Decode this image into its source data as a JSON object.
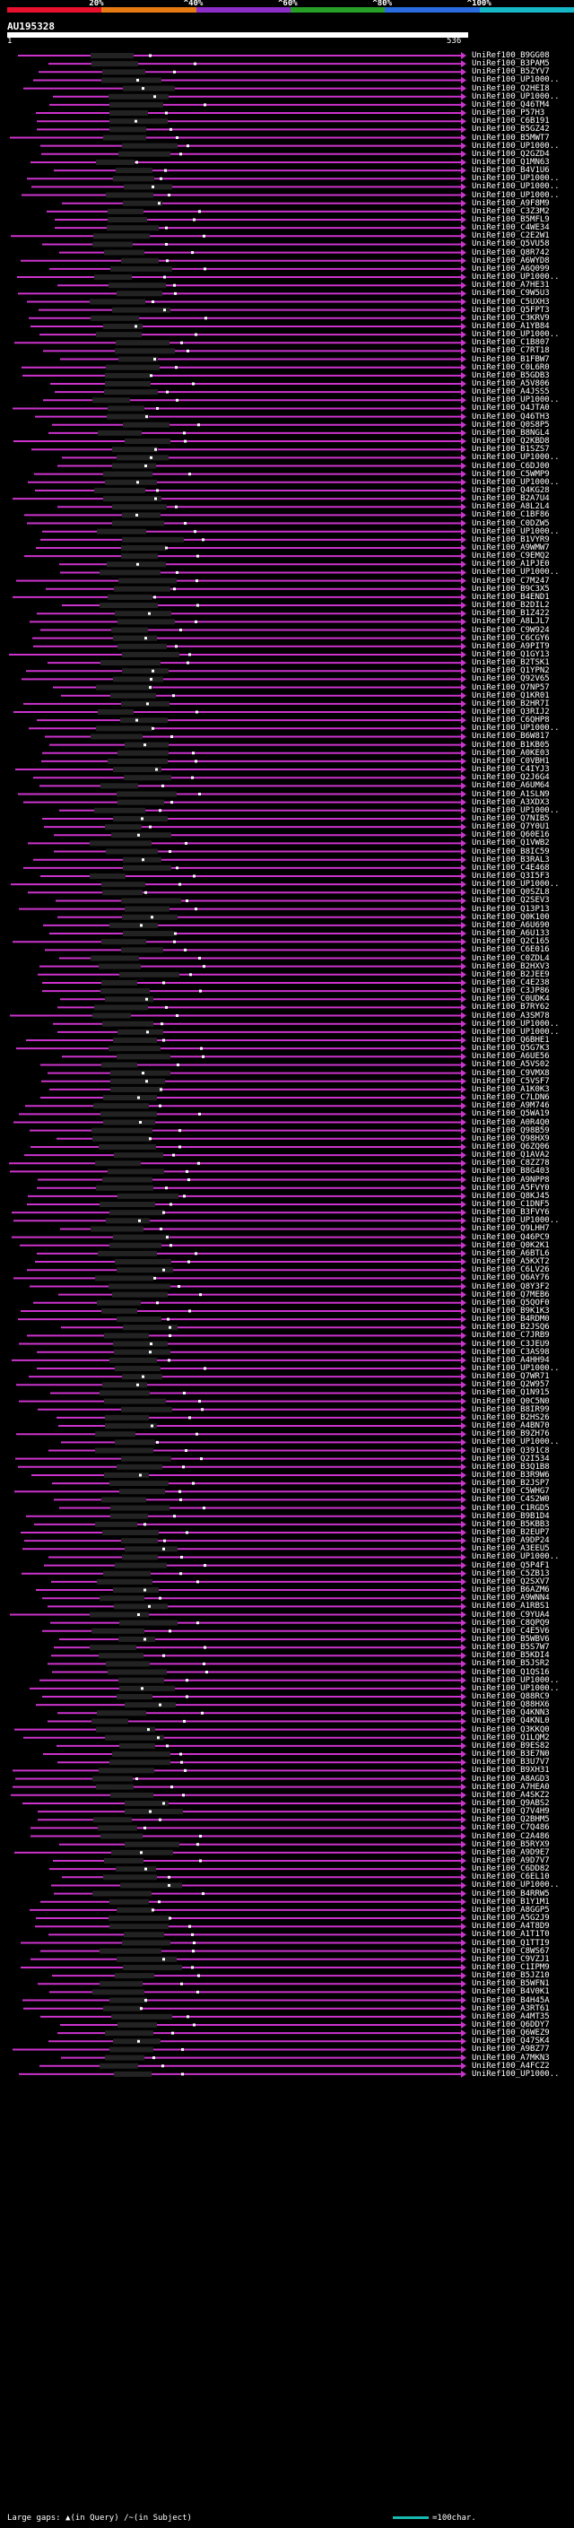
{
  "scale": {
    "labels": [
      "20%",
      "^40%",
      "^60%",
      "^80%",
      "^100%"
    ],
    "colors": [
      "#e8102c",
      "#e87a14",
      "#8e2ec8",
      "#28a028",
      "#2a6ce0",
      "#16b8c8"
    ]
  },
  "query": {
    "name": "AU195328",
    "start": "1",
    "end": "536"
  },
  "hit_color": "#cc33cc",
  "legend": {
    "large_gaps": "Large gaps:",
    "in_query": "(in Query)",
    "in_subject": "(in Subject)",
    "scale_note": "=100char."
  },
  "hits": [
    "UniRef100_B9GG08",
    "UniRef100_B3PAM5",
    "UniRef100_B5ZYV7",
    "UniRef100_UP1000..",
    "UniRef100_Q2HEI8",
    "UniRef100_UP1000..",
    "UniRef100_Q46TM4",
    "UniRef100_P57H3",
    "UniRef100_C6B191",
    "UniRef100_B5GZ42",
    "UniRef100_B5MWT7",
    "UniRef100_UP1000..",
    "UniRef100_Q2GZD4",
    "UniRef100_Q1MN63",
    "UniRef100_B4V1U6",
    "UniRef100_UP1000..",
    "UniRef100_UP1000..",
    "UniRef100_UP1000..",
    "UniRef100_A9F8M9",
    "UniRef100_C3Z3M2",
    "UniRef100_B5MFL9",
    "UniRef100_C4WE34",
    "UniRef100_C2E2W1",
    "UniRef100_Q5VU58",
    "UniRef100_Q8R742",
    "UniRef100_A6WYD8",
    "UniRef100_A6Q099",
    "UniRef100_UP1000..",
    "UniRef100_A7HE31",
    "UniRef100_C9W5U3",
    "UniRef100_C5UXH3",
    "UniRef100_Q5FPT3",
    "UniRef100_C3KRV9",
    "UniRef100_A1YB84",
    "UniRef100_UP1000..",
    "UniRef100_C1B807",
    "UniRef100_C7RT18",
    "UniRef100_B1FBW7",
    "UniRef100_C0L6R0",
    "UniRef100_B5GDB3",
    "UniRef100_A5V806",
    "UniRef100_A4JSS5",
    "UniRef100_UP1000..",
    "UniRef100_Q4JTA0",
    "UniRef100_Q46TH3",
    "UniRef100_Q0S8P5",
    "UniRef100_B8NGL4",
    "UniRef100_Q2KBD8",
    "UniRef100_B1SZS7",
    "UniRef100_UP1000..",
    "UniRef100_C6DJ00",
    "UniRef100_C5WMP9",
    "UniRef100_UP1000..",
    "UniRef100_Q4KG28",
    "UniRef100_B2A7U4",
    "UniRef100_A8L2L4",
    "UniRef100_C1BF86",
    "UniRef100_C0DZW5",
    "UniRef100_UP1000..",
    "UniRef100_B1VYR9",
    "UniRef100_A9WMW7",
    "UniRef100_C9EMQ2",
    "UniRef100_A1PJE0",
    "UniRef100_UP1000..",
    "UniRef100_C7M247",
    "UniRef100_B9C3X5",
    "UniRef100_B4END1",
    "UniRef100_B2DIL2",
    "UniRef100_B1Z422",
    "UniRef100_A8LJL7",
    "UniRef100_C9W924",
    "UniRef100_C6CGY6",
    "UniRef100_A9PIT9",
    "UniRef100_Q1GY13",
    "UniRef100_B2TSK1",
    "UniRef100_Q1YPN2",
    "UniRef100_Q92V65",
    "UniRef100_Q7NP57",
    "UniRef100_Q1KR01",
    "UniRef100_B2HR7I",
    "UniRef100_Q3RIJ2",
    "UniRef100_C6QHP8",
    "UniRef100_UP1000..",
    "UniRef100_B6W817",
    "UniRef100_B1KB05",
    "UniRef100_A0KE03",
    "UniRef100_C0VBH1",
    "UniRef100_C4IYJ3",
    "UniRef100_Q2J6G4",
    "UniRef100_A6UM64",
    "UniRef100_A1SLN9",
    "UniRef100_A3XDX3",
    "UniRef100_UP1000..",
    "UniRef100_Q7NIB5",
    "UniRef100_Q7Y0U1",
    "UniRef100_Q60E16",
    "UniRef100_Q1VWB2",
    "UniRef100_B8IC59",
    "UniRef100_B3RAL3",
    "UniRef100_C4E468",
    "UniRef100_Q3I5F3",
    "UniRef100_UP1000..",
    "UniRef100_Q0SZL8",
    "UniRef100_Q2SEV3",
    "UniRef100_Q13P13",
    "UniRef100_Q0K100",
    "UniRef100_A6U690",
    "UniRef100_A6U133",
    "UniRef100_Q2C165",
    "UniRef100_C6E016",
    "UniRef100_C0ZDL4",
    "UniRef100_B2HXV3",
    "UniRef100_B2JEE9",
    "UniRef100_C4E238",
    "UniRef100_C3JP86",
    "UniRef100_C0UDK4",
    "UniRef100_B7RY62",
    "UniRef100_A3SM78",
    "UniRef100_UP1000..",
    "UniRef100_UP1000..",
    "UniRef100_Q6BHE1",
    "UniRef100_Q5G7K3",
    "UniRef100_A6UE56",
    "UniRef100_A5VS02",
    "UniRef100_C9VMX8",
    "UniRef100_C5VSF7",
    "UniRef100_A1K0K3",
    "UniRef100_C7LDN6",
    "UniRef100_A9M746",
    "UniRef100_Q5WA19",
    "UniRef100_A0R4Q0",
    "UniRef100_Q98B59",
    "UniRef100_Q98HX9",
    "UniRef100_Q6ZQ06",
    "UniRef100_Q1AVA2",
    "UniRef100_C8ZZ78",
    "UniRef100_B8G403",
    "UniRef100_A9NPP8",
    "UniRef100_A5FVY0",
    "UniRef100_Q8KJ45",
    "UniRef100_C1DNF5",
    "UniRef100_B3FVY6",
    "UniRef100_UP1000..",
    "UniRef100_Q9LHH7",
    "UniRef100_Q46PC9",
    "UniRef100_Q0K2K1",
    "UniRef100_A6BTL6",
    "UniRef100_A5KXT2",
    "UniRef100_C6LV26",
    "UniRef100_Q6AY76",
    "UniRef100_Q8Y3F2",
    "UniRef100_Q7MEB6",
    "UniRef100_Q5QOF0",
    "UniRef100_B9K1K3",
    "UniRef100_B4RDM0",
    "UniRef100_B2JSQ6",
    "UniRef100_C7JRB9",
    "UniRef100_C3JEU9",
    "UniRef100_C3AS98",
    "UniRef100_A4HH94",
    "UniRef100_UP1000..",
    "UniRef100_Q7WR71",
    "UniRef100_Q2W957",
    "UniRef100_Q1N915",
    "UniRef100_Q0C5N0",
    "UniRef100_B8IR99",
    "UniRef100_B2HS26",
    "UniRef100_A4BN70",
    "UniRef100_B9ZH76",
    "UniRef100_UP1000..",
    "UniRef100_Q391C8",
    "UniRef100_Q2I534",
    "UniRef100_B3Q1B8",
    "UniRef100_B3R9W6",
    "UniRef100_B2JSP7",
    "UniRef100_C5WHG7",
    "UniRef100_C4S2W0",
    "UniRef100_C1RGD5",
    "UniRef100_B9B1D4",
    "UniRef100_B5KBB3",
    "UniRef100_B2EUP7",
    "UniRef100_A9DP24",
    "UniRef100_A3EEU5",
    "UniRef100_UP1000..",
    "UniRef100_Q5P4F1",
    "UniRef100_C5ZB13",
    "UniRef100_Q2SXV7",
    "UniRef100_B6AZM6",
    "UniRef100_A9WNN4",
    "UniRef100_A1RBS1",
    "UniRef100_C9YUA4",
    "UniRef100_C8QPQ9",
    "UniRef100_C4E5V6",
    "UniRef100_B5WBV6",
    "UniRef100_B5S7W7",
    "UniRef100_B5KDI4",
    "UniRef100_B5JSR2",
    "UniRef100_Q1QS16",
    "UniRef100_UP1000..",
    "UniRef100_UP1000..",
    "UniRef100_Q88RC9",
    "UniRef100_Q88HX6",
    "UniRef100_Q4KNN3",
    "UniRef100_Q4KNL0",
    "UniRef100_Q3KKQ0",
    "UniRef100_Q1LQM2",
    "UniRef100_B9ES82",
    "UniRef100_B3E7N0",
    "UniRef100_B3U7V7",
    "UniRef100_B9XH31",
    "UniRef100_A8AGD3",
    "UniRef100_A7HEA0",
    "UniRef100_A4SKZ2",
    "UniRef100_Q9ABS2",
    "UniRef100_Q7V4H9",
    "UniRef100_Q2BHM5",
    "UniRef100_C7Q486",
    "UniRef100_C2A486",
    "UniRef100_B5RYX9",
    "UniRef100_A9D9E7",
    "UniRef100_A9D7V7",
    "UniRef100_C6DD82",
    "UniRef100_C6EL10",
    "UniRef100_UP1000..",
    "UniRef100_B4RRW5",
    "UniRef100_B1Y1M1",
    "UniRef100_A8GGP5",
    "UniRef100_A5G2J9",
    "UniRef100_A4T8D9",
    "UniRef100_A1T1T0",
    "UniRef100_Q1TTI9",
    "UniRef100_C8WS67",
    "UniRef100_C9VZJ1",
    "UniRef100_C1IPM9",
    "UniRef100_B5JZ10",
    "UniRef100_B5WFN1",
    "UniRef100_B4V0K1",
    "UniRef100_B4H45A",
    "UniRef100_A3RT61",
    "UniRef100_A4MT35",
    "UniRef100_Q6DDY7",
    "UniRef100_Q6WEZ9",
    "UniRef100_Q47SK4",
    "UniRef100_A9BZ77",
    "UniRef100_A7MKN3",
    "UniRef100_A4FCZ2",
    "UniRef100_UP1000.."
  ]
}
